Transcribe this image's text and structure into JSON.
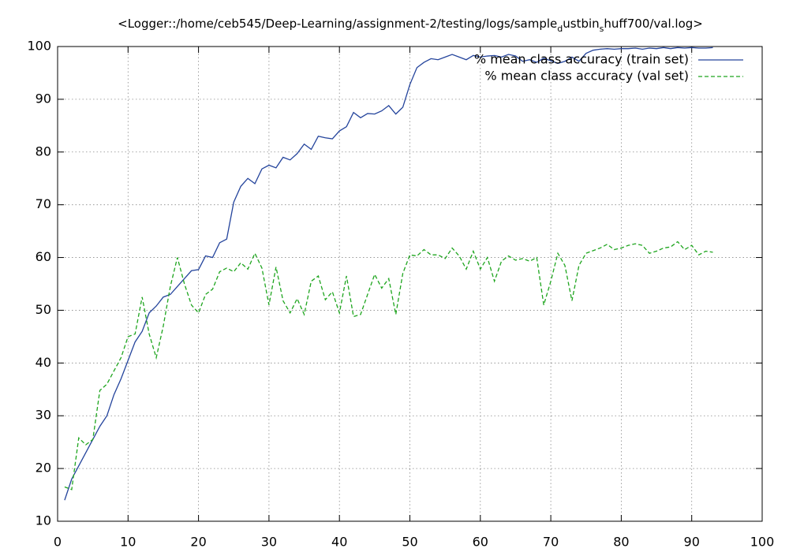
{
  "chart_data": {
    "type": "line",
    "title": [
      "<Logger::/home/ceb545/Deep-Learning/assignment-2/testing/logs/sample",
      "d",
      "ustbin",
      "s",
      "huff700/val.log>"
    ],
    "x": [
      1,
      2,
      3,
      4,
      5,
      6,
      7,
      8,
      9,
      10,
      11,
      12,
      13,
      14,
      15,
      16,
      17,
      18,
      19,
      20,
      21,
      22,
      23,
      24,
      25,
      26,
      27,
      28,
      29,
      30,
      31,
      32,
      33,
      34,
      35,
      36,
      37,
      38,
      39,
      40,
      41,
      42,
      43,
      44,
      45,
      46,
      47,
      48,
      49,
      50,
      51,
      52,
      53,
      54,
      55,
      56,
      57,
      58,
      59,
      60,
      61,
      62,
      63,
      64,
      65,
      66,
      67,
      68,
      69,
      70,
      71,
      72,
      73,
      74,
      75,
      76,
      77,
      78,
      79,
      80,
      81,
      82,
      83,
      84,
      85,
      86,
      87,
      88,
      89,
      90,
      91,
      92,
      93
    ],
    "series": [
      {
        "name": "% mean class accuracy (train set)",
        "color": "#24449c",
        "line_style": "solid",
        "values": [
          14,
          18,
          20.5,
          23,
          25.5,
          28,
          30,
          34,
          37,
          40.5,
          44,
          46,
          49.5,
          50.8,
          52.5,
          53,
          54.5,
          56,
          57.5,
          57.7,
          60.3,
          60,
          62.8,
          63.5,
          70.5,
          73.5,
          75,
          74,
          76.8,
          77.5,
          77,
          79,
          78.5,
          79.7,
          81.5,
          80.5,
          83,
          82.7,
          82.5,
          84,
          84.8,
          87.5,
          86.5,
          87.3,
          87.2,
          87.8,
          88.8,
          87.2,
          88.5,
          92.8,
          96,
          97,
          97.7,
          97.5,
          98,
          98.5,
          98,
          97.5,
          98.3,
          98,
          98.2,
          98.3,
          98,
          98.5,
          98.2,
          97.2,
          97.5,
          97,
          97.8,
          97.3,
          96.8,
          97.2,
          98,
          97.2,
          98.7,
          99.3,
          99.5,
          99.6,
          99.5,
          99.6,
          99.6,
          99.7,
          99.5,
          99.7,
          99.6,
          99.8,
          99.6,
          99.8,
          99.7,
          99.8,
          99.7,
          99.7,
          99.8
        ]
      },
      {
        "name": "% mean class accuracy (val set)",
        "color": "#1ea51e",
        "line_style": "dashed",
        "values": [
          16.5,
          16,
          25.8,
          24.5,
          25.5,
          34.8,
          36,
          38.5,
          41,
          45,
          45.5,
          52.5,
          45.5,
          41,
          47,
          54.5,
          60,
          55,
          51,
          49.5,
          53,
          54,
          57.3,
          58,
          57.3,
          59,
          57.8,
          60.8,
          58,
          51,
          58.2,
          51.8,
          49.5,
          52.2,
          49.2,
          55.5,
          56.5,
          52,
          53.5,
          49.5,
          56.5,
          48.8,
          49.2,
          53,
          56.8,
          54.2,
          56,
          49.2,
          57,
          60.5,
          60.3,
          61.5,
          60.5,
          60.5,
          59.8,
          61.8,
          60.3,
          57.8,
          61.2,
          57.8,
          60,
          55.5,
          59.3,
          60.3,
          59.5,
          59.8,
          59.3,
          60,
          51,
          55.5,
          60.8,
          58.5,
          51.8,
          58.5,
          60.8,
          61.3,
          61.8,
          62.5,
          61.5,
          61.8,
          62.3,
          62.6,
          62.3,
          60.8,
          61.2,
          61.8,
          62,
          63,
          61.5,
          62.3,
          60.5,
          61.2,
          61
        ]
      }
    ],
    "xlim": [
      0,
      100
    ],
    "xticks": [
      0,
      10,
      20,
      30,
      40,
      50,
      60,
      70,
      80,
      90,
      100
    ],
    "ylim": [
      10,
      100
    ],
    "yticks": [
      10,
      20,
      30,
      40,
      50,
      60,
      70,
      80,
      90,
      100
    ],
    "grid": true,
    "legend": "top-right"
  }
}
